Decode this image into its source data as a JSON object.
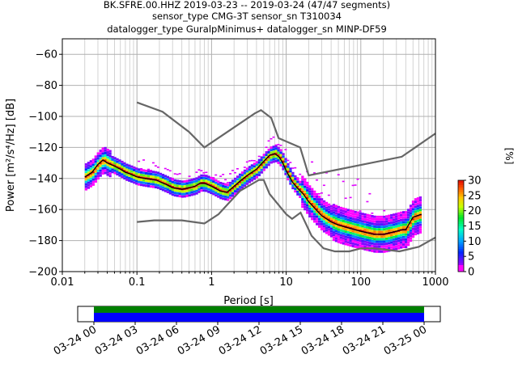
{
  "chart_data": {
    "type": "heatmap",
    "title_lines": [
      "BK.SFRE.00.HHZ   2019-03-23 -- 2019-03-24  (47/47 segments)",
      "sensor_type CMG-3T sensor_sn T310034",
      "datalogger_type GuralpMinimus+ datalogger_sn MINP-DF59"
    ],
    "xlabel": "Period [s]",
    "ylabel": "Power [m²/s⁴/Hz] [dB]",
    "x_scale": "log",
    "xlim": [
      0.01,
      1000
    ],
    "ylim": [
      -200,
      -50
    ],
    "grid": true,
    "x_ticks": [
      {
        "value": 0.01,
        "label": "0.01"
      },
      {
        "value": 0.1,
        "label": "0.1"
      },
      {
        "value": 1,
        "label": "1"
      },
      {
        "value": 10,
        "label": "10"
      },
      {
        "value": 100,
        "label": "100"
      },
      {
        "value": 1000,
        "label": "1000"
      }
    ],
    "y_ticks": [
      -200,
      -180,
      -160,
      -140,
      -120,
      -100,
      -80,
      -60
    ],
    "noise_models": {
      "high": [
        [
          0.1,
          -91
        ],
        [
          0.22,
          -97
        ],
        [
          0.5,
          -110
        ],
        [
          0.8,
          -120
        ],
        [
          3.8,
          -98
        ],
        [
          4.6,
          -96
        ],
        [
          6.3,
          -101
        ],
        [
          7.9,
          -114
        ],
        [
          15.4,
          -120
        ],
        [
          20,
          -138
        ],
        [
          354,
          -126
        ],
        [
          1000,
          -111
        ]
      ],
      "low": [
        [
          0.1,
          -168
        ],
        [
          0.17,
          -167
        ],
        [
          0.4,
          -167
        ],
        [
          0.8,
          -169
        ],
        [
          1.24,
          -163
        ],
        [
          2.4,
          -148
        ],
        [
          4.3,
          -141
        ],
        [
          5,
          -141
        ],
        [
          6,
          -150
        ],
        [
          10,
          -163
        ],
        [
          12,
          -166
        ],
        [
          15.6,
          -162
        ],
        [
          21.9,
          -177
        ],
        [
          31.6,
          -185
        ],
        [
          45,
          -187
        ],
        [
          70,
          -187
        ],
        [
          101,
          -185
        ],
        [
          154,
          -185
        ],
        [
          328,
          -187
        ],
        [
          600,
          -184
        ],
        [
          1000,
          -178
        ]
      ]
    },
    "mean_curve": [
      [
        0.02,
        -139
      ],
      [
        0.025,
        -136
      ],
      [
        0.03,
        -131
      ],
      [
        0.035,
        -128
      ],
      [
        0.04,
        -130
      ],
      [
        0.05,
        -132
      ],
      [
        0.06,
        -134
      ],
      [
        0.07,
        -136
      ],
      [
        0.08,
        -137
      ],
      [
        0.1,
        -139
      ],
      [
        0.13,
        -140
      ],
      [
        0.18,
        -141
      ],
      [
        0.25,
        -144
      ],
      [
        0.3,
        -146
      ],
      [
        0.4,
        -147
      ],
      [
        0.5,
        -146
      ],
      [
        0.6,
        -145
      ],
      [
        0.7,
        -143
      ],
      [
        0.8,
        -143
      ],
      [
        1,
        -145
      ],
      [
        1.3,
        -148
      ],
      [
        1.6,
        -149
      ],
      [
        2,
        -145
      ],
      [
        2.5,
        -141
      ],
      [
        3,
        -138
      ],
      [
        4,
        -134
      ],
      [
        5,
        -129
      ],
      [
        6,
        -125
      ],
      [
        7,
        -124
      ],
      [
        8,
        -126
      ],
      [
        9,
        -130
      ],
      [
        10,
        -135
      ],
      [
        12,
        -142
      ],
      [
        14,
        -146
      ],
      [
        17,
        -150
      ],
      [
        20,
        -155
      ],
      [
        25,
        -160
      ],
      [
        30,
        -164
      ],
      [
        40,
        -168
      ],
      [
        50,
        -170
      ],
      [
        70,
        -172
      ],
      [
        100,
        -174
      ],
      [
        150,
        -176
      ],
      [
        200,
        -176
      ],
      [
        300,
        -174
      ],
      [
        350,
        -173
      ],
      [
        400,
        -173
      ],
      [
        500,
        -165
      ],
      [
        650,
        -163
      ]
    ],
    "colorbar": {
      "label": "[%]",
      "ticks": [
        0,
        5,
        10,
        15,
        20,
        25,
        30
      ],
      "range": [
        0,
        30
      ]
    },
    "timeline": {
      "ticks": [
        "03-24 00",
        "03-24 03",
        "03-24 06",
        "03-24 09",
        "03-24 12",
        "03-24 15",
        "03-24 18",
        "03-24 21",
        "03-25 00"
      ],
      "bar_colors": [
        "#008000",
        "#0000ff"
      ]
    }
  }
}
